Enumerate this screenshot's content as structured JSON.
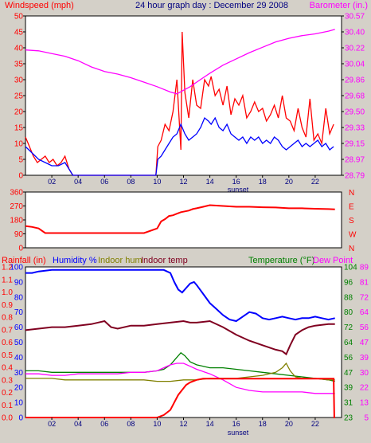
{
  "header": {
    "left_title": "Windspeed (mph)",
    "center_title": "24 hour graph day : December 29 2008",
    "right_title": "Barometer (in.)"
  },
  "footer": {
    "marker_label": "sunset"
  },
  "colors": {
    "background": "#d4d0c8",
    "plot_bg": "#ffffff",
    "frame": "#000000",
    "windspeed": "#ff0000",
    "windavg": "#0000ff",
    "barometer": "#ff00ff",
    "direction": "#ff0000",
    "rainfall": "#ff0000",
    "humidity": "#0000ff",
    "indoor_hum": "#808000",
    "indoor_temp": "#800020",
    "temperature": "#008000",
    "dew_point": "#ff00ff"
  },
  "chart_data": [
    {
      "type": "line",
      "panel": "wind",
      "x_ticks": [
        "02",
        "04",
        "06",
        "08",
        "10",
        "12",
        "14",
        "16",
        "18",
        "20",
        "22"
      ],
      "x_range": [
        0,
        24
      ],
      "y_left_label": "Windspeed (mph)",
      "y_left_ticks": [
        "0",
        "5",
        "10",
        "15",
        "20",
        "25",
        "30",
        "35",
        "40",
        "45",
        "50"
      ],
      "y_left_range": [
        0,
        50
      ],
      "y_right_label": "Barometer (in.)",
      "y_right_ticks": [
        "28.79",
        "28.97",
        "29.15",
        "29.33",
        "29.50",
        "29.68",
        "29.86",
        "30.04",
        "30.22",
        "30.40",
        "30.57"
      ],
      "y_right_range": [
        28.79,
        30.57
      ],
      "series": [
        {
          "key": "windspeed",
          "axis": "left",
          "x": [
            0,
            0.3,
            0.6,
            0.9,
            1.2,
            1.5,
            1.8,
            2.1,
            2.4,
            2.7,
            3.0,
            3.3,
            3.6,
            4,
            6,
            8,
            9.9,
            10.05,
            10.3,
            10.6,
            10.9,
            11.2,
            11.5,
            11.8,
            11.9,
            12.1,
            12.4,
            12.7,
            13,
            13.3,
            13.6,
            13.9,
            14.1,
            14.4,
            14.7,
            15,
            15.3,
            15.6,
            15.9,
            16.2,
            16.5,
            16.8,
            17.1,
            17.4,
            17.7,
            18,
            18.3,
            18.6,
            18.9,
            19.2,
            19.5,
            19.8,
            20.1,
            20.4,
            20.7,
            21,
            21.3,
            21.6,
            21.9,
            22.2,
            22.5,
            22.8,
            23.1,
            23.4
          ],
          "values": [
            12,
            9,
            6,
            4,
            5,
            6,
            4,
            5,
            3,
            4,
            6,
            2,
            0,
            0,
            0,
            0,
            0,
            9,
            11,
            16,
            14,
            20,
            30,
            8,
            45,
            26,
            18,
            30,
            22,
            21,
            30,
            28,
            31,
            25,
            27,
            22,
            28,
            19,
            24,
            22,
            25,
            18,
            20,
            23,
            20,
            21,
            17,
            19,
            22,
            18,
            25,
            18,
            17,
            14,
            21,
            15,
            12,
            24,
            11,
            13,
            10,
            21,
            13,
            16
          ]
        },
        {
          "key": "windavg",
          "axis": "left",
          "x": [
            0,
            0.5,
            1,
            1.5,
            2,
            2.5,
            3.0,
            3.3,
            3.6,
            4,
            6,
            8,
            9.9,
            10.05,
            10.3,
            10.6,
            10.9,
            11.2,
            11.5,
            11.8,
            12.1,
            12.4,
            12.7,
            13,
            13.3,
            13.6,
            13.9,
            14.1,
            14.4,
            14.7,
            15,
            15.3,
            15.6,
            15.9,
            16.2,
            16.5,
            16.8,
            17.1,
            17.4,
            17.7,
            18,
            18.3,
            18.6,
            18.9,
            19.2,
            19.5,
            19.8,
            20.1,
            20.4,
            20.7,
            21,
            21.3,
            21.6,
            21.9,
            22.2,
            22.5,
            22.8,
            23.1,
            23.4
          ],
          "values": [
            9,
            7,
            5,
            4,
            3,
            3,
            4,
            2,
            0,
            0,
            0,
            0,
            0,
            5,
            6,
            8,
            10,
            12,
            13,
            16,
            13,
            11,
            12,
            13,
            15,
            18,
            17,
            16,
            18,
            15,
            14,
            16,
            13,
            12,
            11,
            12,
            10,
            12,
            11,
            12,
            10,
            11,
            10,
            12,
            11,
            9,
            8,
            9,
            10,
            11,
            9,
            10,
            9,
            10,
            11,
            9,
            10,
            8,
            9
          ]
        },
        {
          "key": "barometer",
          "axis": "right",
          "x": [
            0,
            1,
            2,
            3,
            4,
            5,
            6,
            7,
            8,
            9,
            10,
            11,
            11.5,
            12,
            12.5,
            13,
            14,
            15,
            16,
            17,
            18,
            19,
            20,
            21,
            22,
            23,
            23.5
          ],
          "values": [
            30.19,
            30.18,
            30.15,
            30.12,
            30.07,
            30.0,
            29.95,
            29.92,
            29.88,
            29.83,
            29.78,
            29.72,
            29.7,
            29.74,
            29.78,
            29.83,
            29.93,
            30.02,
            30.09,
            30.16,
            30.22,
            30.28,
            30.32,
            30.35,
            30.37,
            30.4,
            30.42
          ]
        }
      ]
    },
    {
      "type": "line",
      "panel": "direction",
      "x_range": [
        0,
        24
      ],
      "y_ticks": [
        "0",
        "90",
        "180",
        "270",
        "360"
      ],
      "y_range": [
        0,
        360
      ],
      "right_labels": [
        "N",
        "W",
        "S",
        "E",
        "N"
      ],
      "series": [
        {
          "key": "direction",
          "x": [
            0,
            0.5,
            1,
            1.5,
            2,
            2.5,
            3,
            4,
            5,
            6,
            7,
            8,
            9,
            10,
            10.3,
            10.6,
            10.9,
            11.2,
            11.5,
            11.8,
            12.1,
            12.4,
            12.7,
            13,
            13.5,
            14,
            15,
            16,
            17,
            18,
            19,
            20,
            21,
            22,
            23,
            23.5
          ],
          "values": [
            140,
            135,
            125,
            95,
            95,
            95,
            95,
            95,
            95,
            95,
            95,
            95,
            95,
            125,
            170,
            185,
            205,
            210,
            220,
            230,
            235,
            240,
            250,
            255,
            265,
            275,
            270,
            265,
            265,
            262,
            260,
            255,
            255,
            252,
            250,
            248
          ]
        }
      ]
    },
    {
      "type": "line",
      "panel": "humidity-temperature",
      "x_range": [
        0,
        24
      ],
      "y_left1_label": "Rainfall (in)",
      "y_left1_ticks": [
        "0.0",
        "0.1",
        "0.2",
        "0.3",
        "0.4",
        "0.5",
        "0.6",
        "0.7",
        "0.8",
        "0.9",
        "1.0",
        "1.1",
        "1.2"
      ],
      "y_left1_range": [
        0,
        1.2
      ],
      "y_left2_label": "Humidity %",
      "y_left2_ticks": [
        "0",
        "10",
        "20",
        "30",
        "40",
        "50",
        "60",
        "70",
        "80",
        "90",
        "100"
      ],
      "y_left2_range": [
        0,
        100
      ],
      "indoor_hum_label": "Indoor hum",
      "indoor_temp_label": "Indoor temp",
      "y_right1_label": "Temperature (°F)",
      "y_right1_ticks": [
        "23",
        "31",
        "39",
        "47",
        "56",
        "64",
        "72",
        "80",
        "88",
        "96",
        "104"
      ],
      "y_right1_range": [
        23,
        104
      ],
      "y_right2_label": "Dew Point",
      "y_right2_ticks": [
        "5",
        "13",
        "22",
        "30",
        "39",
        "47",
        "56",
        "64",
        "72",
        "81",
        "89"
      ],
      "y_right2_range": [
        5,
        89
      ],
      "series": [
        {
          "key": "humidity",
          "axis": "left2",
          "x": [
            0,
            0.5,
            1,
            2,
            4,
            6,
            8,
            9,
            10,
            10.5,
            11,
            11.3,
            11.6,
            11.9,
            12.2,
            12.5,
            12.8,
            13,
            13.5,
            14,
            14.5,
            15,
            15.5,
            16,
            16.5,
            17,
            17.5,
            18,
            18.5,
            19,
            19.5,
            20,
            20.5,
            21,
            21.5,
            22,
            22.5,
            23,
            23.5
          ],
          "values": [
            96,
            96,
            97,
            98,
            98,
            98,
            98,
            98,
            98,
            98,
            96,
            90,
            85,
            83,
            86,
            89,
            90,
            88,
            82,
            76,
            72,
            68,
            65,
            64,
            67,
            70,
            69,
            66,
            65,
            66,
            67,
            66,
            65,
            66,
            66,
            67,
            66,
            65,
            66
          ]
        },
        {
          "key": "indoor_temp",
          "axis": "left2",
          "x": [
            0,
            1,
            2,
            3,
            4,
            5,
            6,
            6.5,
            7,
            8,
            9,
            10,
            11,
            12,
            12.5,
            13,
            14,
            15,
            16,
            17,
            18,
            19,
            19.5,
            19.8,
            20.1,
            20.5,
            21,
            21.5,
            22,
            23,
            23.5
          ],
          "values": [
            58,
            59,
            60,
            60,
            61,
            62,
            64,
            60,
            59,
            61,
            61,
            62,
            63,
            64,
            63,
            63,
            64,
            60,
            55,
            51,
            48,
            45,
            44,
            42,
            48,
            55,
            58,
            60,
            61,
            62,
            62
          ]
        },
        {
          "key": "temperature",
          "axis": "left2",
          "x": [
            0,
            1,
            2,
            3,
            4,
            5,
            6,
            7,
            8,
            9,
            10,
            10.5,
            11,
            11.5,
            11.8,
            12.1,
            12.5,
            13,
            13.5,
            14,
            15,
            16,
            17,
            18,
            19,
            20,
            21,
            22,
            23,
            23.5
          ],
          "values": [
            31,
            31,
            30,
            30,
            30,
            30,
            30,
            30,
            30,
            30,
            31,
            32,
            35,
            40,
            43,
            41,
            37,
            35,
            34,
            33,
            33,
            32,
            31,
            30,
            29,
            28,
            27,
            26,
            25,
            24
          ]
        },
        {
          "key": "dew_point",
          "axis": "left2",
          "x": [
            0,
            1,
            2,
            3,
            4,
            5,
            6,
            7,
            8,
            9,
            10,
            10.5,
            11,
            11.5,
            12,
            12.5,
            13,
            14,
            15,
            16,
            17,
            18,
            19,
            20,
            21,
            22,
            23,
            23.5
          ],
          "values": [
            29,
            29,
            28,
            28,
            29,
            29,
            29,
            29,
            30,
            30,
            31,
            33,
            35,
            36,
            36,
            34,
            32,
            29,
            25,
            20,
            18,
            17,
            17,
            17,
            17,
            16,
            16,
            16
          ]
        },
        {
          "key": "indoor_hum",
          "axis": "left2",
          "x": [
            0,
            1,
            2,
            3,
            4,
            5,
            6,
            7,
            8,
            9,
            10,
            11,
            12,
            13,
            14,
            15,
            16,
            17,
            18,
            19,
            19.5,
            19.8,
            20.1,
            20.5,
            21,
            22,
            23,
            23.5
          ],
          "values": [
            26,
            26,
            26,
            25,
            25,
            25,
            25,
            25,
            25,
            25,
            24,
            24,
            25,
            25,
            26,
            26,
            26,
            27,
            28,
            30,
            33,
            36,
            31,
            27,
            26,
            26,
            25,
            25
          ]
        },
        {
          "key": "rainfall",
          "axis": "left1",
          "x": [
            0,
            9,
            10,
            10.5,
            11,
            11.3,
            11.6,
            11.9,
            12.2,
            12.5,
            13,
            13.5,
            14,
            16,
            18,
            20,
            22,
            23.4,
            23.45,
            23.5
          ],
          "values": [
            0,
            0,
            0,
            0.02,
            0.06,
            0.12,
            0.18,
            0.22,
            0.26,
            0.28,
            0.3,
            0.31,
            0.31,
            0.31,
            0.31,
            0.31,
            0.31,
            0.31,
            0.0,
            0.0
          ]
        }
      ]
    }
  ]
}
